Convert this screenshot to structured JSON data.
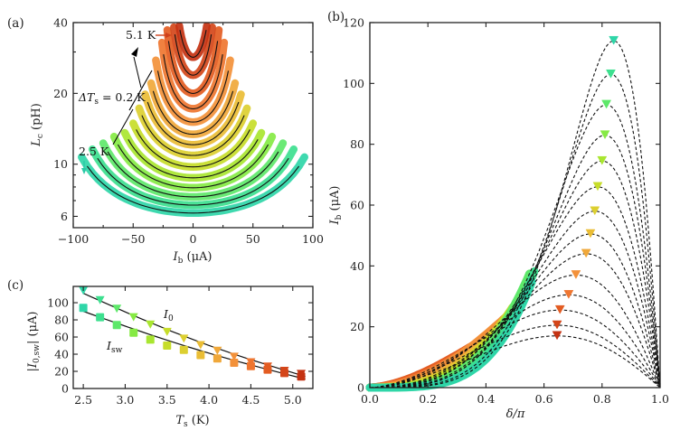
{
  "chart_data": [
    {
      "panel": "(a)",
      "type": "line",
      "xlabel": "I_b (μA)",
      "ylabel": "L_c (pH)",
      "xlim": [
        -100,
        100
      ],
      "ylim": [
        5.37,
        40
      ],
      "yscale": "log",
      "xticks": [
        -100,
        -50,
        0,
        50,
        100
      ],
      "xtick_labels": [
        "−100",
        "−50",
        "0",
        "50",
        "100"
      ],
      "yticks": [
        6,
        10,
        20,
        40
      ],
      "ytick_labels": [
        "6",
        "10",
        "20",
        "40"
      ],
      "annotations": [
        {
          "text": "5.1 K",
          "arrow_color": "#d0401a"
        },
        {
          "text": "ΔT_s = 0.2 K",
          "arrow_color": "#000000"
        },
        {
          "text": "2.5 K",
          "arrow_color": "#29c9a6"
        }
      ],
      "note": "Each temperature: measured Lc(Ib) (thick colored band) with fit (thin black line), spanning −I_sw to +I_sw",
      "series": [
        {
          "T_K": 2.5,
          "L_min_pH": 6.2,
          "I_sw_uA": 93,
          "color": "#2fd6a8"
        },
        {
          "T_K": 2.7,
          "L_min_pH": 6.7,
          "I_sw_uA": 84,
          "color": "#3de08f"
        },
        {
          "T_K": 2.9,
          "L_min_pH": 7.26,
          "I_sw_uA": 75,
          "color": "#5ee86a"
        },
        {
          "T_K": 3.1,
          "L_min_pH": 7.94,
          "I_sw_uA": 66,
          "color": "#86ea44"
        },
        {
          "T_K": 3.3,
          "L_min_pH": 8.75,
          "I_sw_uA": 57,
          "color": "#a9e630"
        },
        {
          "T_K": 3.5,
          "L_min_pH": 9.74,
          "I_sw_uA": 50,
          "color": "#c7dd2a"
        },
        {
          "T_K": 3.7,
          "L_min_pH": 10.9,
          "I_sw_uA": 45,
          "color": "#dccf30"
        },
        {
          "T_K": 3.9,
          "L_min_pH": 12.1,
          "I_sw_uA": 40,
          "color": "#eabd35"
        },
        {
          "T_K": 4.1,
          "L_min_pH": 13.4,
          "I_sw_uA": 35,
          "color": "#f0a83a"
        },
        {
          "T_K": 4.3,
          "L_min_pH": 15.1,
          "I_sw_uA": 31,
          "color": "#f3913a"
        },
        {
          "T_K": 4.5,
          "L_min_pH": 17.2,
          "I_sw_uA": 26,
          "color": "#ef7630"
        },
        {
          "T_K": 4.7,
          "L_min_pH": 20.0,
          "I_sw_uA": 21.5,
          "color": "#e35c22"
        },
        {
          "T_K": 4.9,
          "L_min_pH": 23.9,
          "I_sw_uA": 16,
          "color": "#d4461a"
        },
        {
          "T_K": 5.1,
          "L_min_pH": 28.5,
          "I_sw_uA": 11.5,
          "color": "#c43212"
        }
      ]
    },
    {
      "panel": "(b)",
      "type": "line",
      "xlabel": "δ/π",
      "ylabel": "I_b (μA)",
      "xlim": [
        0,
        1
      ],
      "ylim": [
        0,
        120
      ],
      "xticks": [
        0,
        0.2,
        0.4,
        0.6,
        0.8,
        1.0
      ],
      "xtick_labels": [
        "0.0",
        "0.2",
        "0.4",
        "0.6",
        "0.8",
        "1.0"
      ],
      "yticks": [
        0,
        20,
        40,
        60,
        80,
        100,
        120
      ],
      "ytick_labels": [
        "0",
        "20",
        "40",
        "60",
        "80",
        "100",
        "120"
      ],
      "note": "Measured I_b(δ) (thick colored band) up to switching; dashed fit curves; triangles mark maxima I_0",
      "series": [
        {
          "T_K": 2.5,
          "band_end": [
            0.564,
            90.9
          ],
          "peak": [
            0.84,
            114
          ],
          "color": "#2fd6a8"
        },
        {
          "T_K": 2.7,
          "band_end": [
            0.573,
            83.8
          ],
          "peak": [
            0.83,
            103
          ],
          "color": "#3de08f"
        },
        {
          "T_K": 2.9,
          "band_end": [
            0.554,
            75.4
          ],
          "peak": [
            0.815,
            93
          ],
          "color": "#5ee86a"
        },
        {
          "T_K": 3.1,
          "band_end": [
            0.523,
            66.0
          ],
          "peak": [
            0.81,
            83
          ],
          "color": "#86ea44"
        },
        {
          "T_K": 3.3,
          "band_end": [
            0.517,
            57.0
          ],
          "peak": [
            0.8,
            74.5
          ],
          "color": "#a9e630"
        },
        {
          "T_K": 3.5,
          "band_end": [
            0.495,
            49.6
          ],
          "peak": [
            0.785,
            66
          ],
          "color": "#c7dd2a"
        },
        {
          "T_K": 3.7,
          "band_end": [
            0.5,
            44.5
          ],
          "peak": [
            0.775,
            58
          ],
          "color": "#dccf30"
        },
        {
          "T_K": 3.9,
          "band_end": [
            0.495,
            39.8
          ],
          "peak": [
            0.76,
            50.5
          ],
          "color": "#eabd35"
        },
        {
          "T_K": 4.1,
          "band_end": [
            0.492,
            35.3
          ],
          "peak": [
            0.745,
            44
          ],
          "color": "#f0a83a"
        },
        {
          "T_K": 4.3,
          "band_end": [
            0.495,
            30.9
          ],
          "peak": [
            0.71,
            37
          ],
          "color": "#f3913a"
        },
        {
          "T_K": 4.5,
          "band_end": [
            0.45,
            25.8
          ],
          "peak": [
            0.685,
            30.5
          ],
          "color": "#ef7630"
        },
        {
          "T_K": 4.7,
          "band_end": [
            0.44,
            21.4
          ],
          "peak": [
            0.655,
            25.5
          ],
          "color": "#e35c22"
        },
        {
          "T_K": 4.9,
          "band_end": [
            0.39,
            16.0
          ],
          "peak": [
            0.645,
            20.5
          ],
          "color": "#d4461a"
        },
        {
          "T_K": 5.1,
          "band_end": [
            0.33,
            11.6
          ],
          "peak": [
            0.645,
            17
          ],
          "color": "#c43212"
        }
      ]
    },
    {
      "panel": "(c)",
      "type": "scatter",
      "xlabel": "T_s (K)",
      "ylabel": "|I_0,sw| (μA)",
      "xlim": [
        2.38,
        5.24
      ],
      "ylim": [
        0,
        119
      ],
      "xticks": [
        2.5,
        3.0,
        3.5,
        4.0,
        4.5,
        5.0
      ],
      "xtick_labels": [
        "2.5",
        "3.0",
        "3.5",
        "4.0",
        "4.5",
        "5.0"
      ],
      "yticks": [
        0,
        20,
        40,
        60,
        80,
        100
      ],
      "ytick_labels": [
        "0",
        "20",
        "40",
        "60",
        "80",
        "100"
      ],
      "x": [
        2.5,
        2.7,
        2.9,
        3.1,
        3.3,
        3.5,
        3.7,
        3.9,
        4.1,
        4.3,
        4.5,
        4.7,
        4.9,
        5.1
      ],
      "series": [
        {
          "name": "I_0",
          "marker": "triangle-down",
          "label": "I_0",
          "values": [
            114,
            103,
            93,
            83,
            74.5,
            66,
            58,
            50.5,
            44,
            37,
            30.5,
            25.5,
            20.5,
            17
          ]
        },
        {
          "name": "I_sw",
          "marker": "square",
          "label": "I_sw",
          "values": [
            94,
            83,
            74,
            65,
            57,
            50,
            45,
            39,
            35,
            30,
            26,
            22,
            18,
            14
          ]
        }
      ],
      "fit_lines": [
        {
          "name": "I_0 fit",
          "from": [
            2.5,
            111
          ],
          "to": [
            5.15,
            14
          ]
        },
        {
          "name": "I_sw fit",
          "from": [
            2.5,
            90
          ],
          "to": [
            5.15,
            11
          ]
        }
      ]
    }
  ],
  "labels": {
    "panel_a": "(a)",
    "panel_b": "(b)",
    "panel_c": "(c)",
    "a_xlabel": "I",
    "a_xlabel_sub": "b",
    "a_xlabel_unit": " (μA)",
    "a_ylabel": "L",
    "a_ylabel_sub": "c",
    "a_ylabel_unit": " (pH)",
    "b_xlabel": "δ/π",
    "b_ylabel": "I",
    "b_ylabel_sub": "b",
    "b_ylabel_unit": " (μA)",
    "c_xlabel": "T",
    "c_xlabel_sub": "s",
    "c_xlabel_unit": " (K)",
    "c_ylabel": "|I",
    "c_ylabel_sub": "0,sw",
    "c_ylabel_unit": "| (μA)",
    "ann_51": "5.1 K",
    "ann_dT": "ΔT",
    "ann_dT_sub": "s",
    "ann_dT_val": " = 0.2 K",
    "ann_25": "2.5 K",
    "c_I0": "I",
    "c_I0_sub": "0",
    "c_Isw": "I",
    "c_Isw_sub": "sw"
  }
}
